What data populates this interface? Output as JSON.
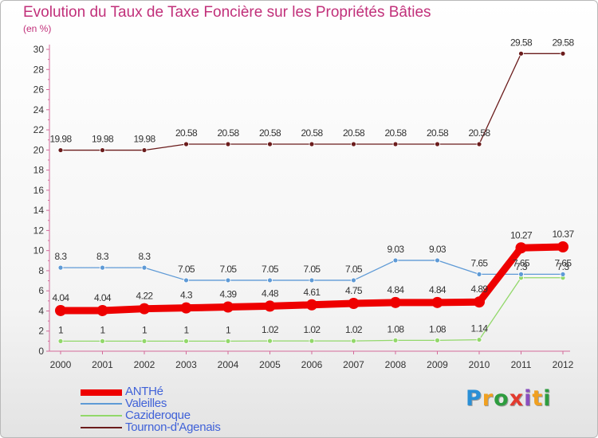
{
  "title": "Evolution du Taux de Taxe Foncière sur les Propriétés Bâties",
  "unit_label": "(en %)",
  "brand": {
    "letters": [
      "P",
      "r",
      "o",
      "x",
      "i",
      "t",
      "i"
    ],
    "colors": [
      "#2a8fd6",
      "#f0a020",
      "#2e9d3f",
      "#e23b2f",
      "#8a4fbf",
      "#f0a020",
      "#2e9d3f"
    ]
  },
  "chart_data": {
    "type": "line",
    "x": [
      "2000",
      "2001",
      "2002",
      "2003",
      "2004",
      "2005",
      "2006",
      "2007",
      "2008",
      "2009",
      "2010",
      "2011",
      "2012"
    ],
    "ylim": [
      0,
      30
    ],
    "yticks": [
      "0",
      "2",
      "4",
      "6",
      "8",
      "10",
      "12",
      "14",
      "16",
      "18",
      "20",
      "22",
      "24",
      "26",
      "28",
      "30"
    ],
    "grid": false,
    "legend_position": "bottom-left",
    "series": [
      {
        "name": "ANTHé",
        "values": [
          4.04,
          4.04,
          4.22,
          4.3,
          4.39,
          4.48,
          4.61,
          4.75,
          4.84,
          4.84,
          4.89,
          10.27,
          10.37
        ],
        "labels": [
          "4.04",
          "4.04",
          "4.22",
          "4.3",
          "4.39",
          "4.48",
          "4.61",
          "4.75",
          "4.84",
          "4.84",
          "4.89",
          "10.27",
          "10.37"
        ],
        "color": "#ee0000"
      },
      {
        "name": "Valeilles",
        "values": [
          8.3,
          8.3,
          8.3,
          7.05,
          7.05,
          7.05,
          7.05,
          7.05,
          9.03,
          9.03,
          7.65,
          7.65,
          7.65
        ],
        "labels": [
          "8.3",
          "8.3",
          "8.3",
          "7.05",
          "7.05",
          "7.05",
          "7.05",
          "7.05",
          "9.03",
          "9.03",
          "7.65",
          "7.65",
          "7.65"
        ],
        "color": "#5e9ad6"
      },
      {
        "name": "Cazideroque",
        "values": [
          1,
          1,
          1,
          1,
          1,
          1.02,
          1.02,
          1.02,
          1.08,
          1.08,
          1.14,
          7.3,
          7.3
        ],
        "labels": [
          "1",
          "1",
          "1",
          "1",
          "1",
          "1.02",
          "1.02",
          "1.02",
          "1.08",
          "1.08",
          "1.14",
          "7.3",
          "7.3"
        ],
        "color": "#92d86a"
      },
      {
        "name": "Tournon-d'Agenais",
        "values": [
          19.98,
          19.98,
          19.98,
          20.58,
          20.58,
          20.58,
          20.58,
          20.58,
          20.58,
          20.58,
          20.58,
          29.58,
          29.58
        ],
        "labels": [
          "19.98",
          "19.98",
          "19.98",
          "20.58",
          "20.58",
          "20.58",
          "20.58",
          "20.58",
          "20.58",
          "20.58",
          "20.58",
          "29.58",
          "29.58"
        ],
        "color": "#6b1c1c"
      }
    ]
  }
}
